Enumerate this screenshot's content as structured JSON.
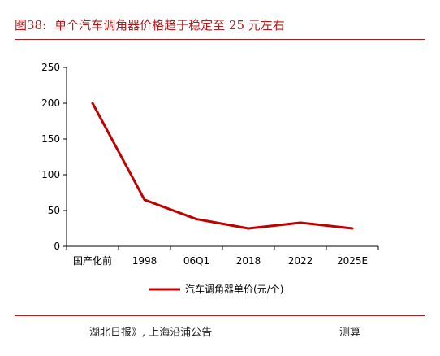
{
  "header": {
    "figure_number": "图38:",
    "figure_title": "单个汽车调角器价格趋于稳定至 25 元左右"
  },
  "footer": {
    "source": "湖北日报》, 上海沿浦公告",
    "note": "测算"
  },
  "colors": {
    "accent": "#b01c1c",
    "series": "#c00000",
    "axis": "#000000"
  },
  "chart_data": {
    "type": "line",
    "categories": [
      "国产化前",
      "1998",
      "06Q1",
      "2018",
      "2022",
      "2025E"
    ],
    "series": [
      {
        "name": "汽车调角器单价(元/个)",
        "values": [
          200,
          65,
          38,
          25,
          33,
          25
        ]
      }
    ],
    "ylim": [
      0,
      250
    ],
    "yticks": [
      0,
      50,
      100,
      150,
      200,
      250
    ],
    "grid": false,
    "legend": "bottom"
  }
}
